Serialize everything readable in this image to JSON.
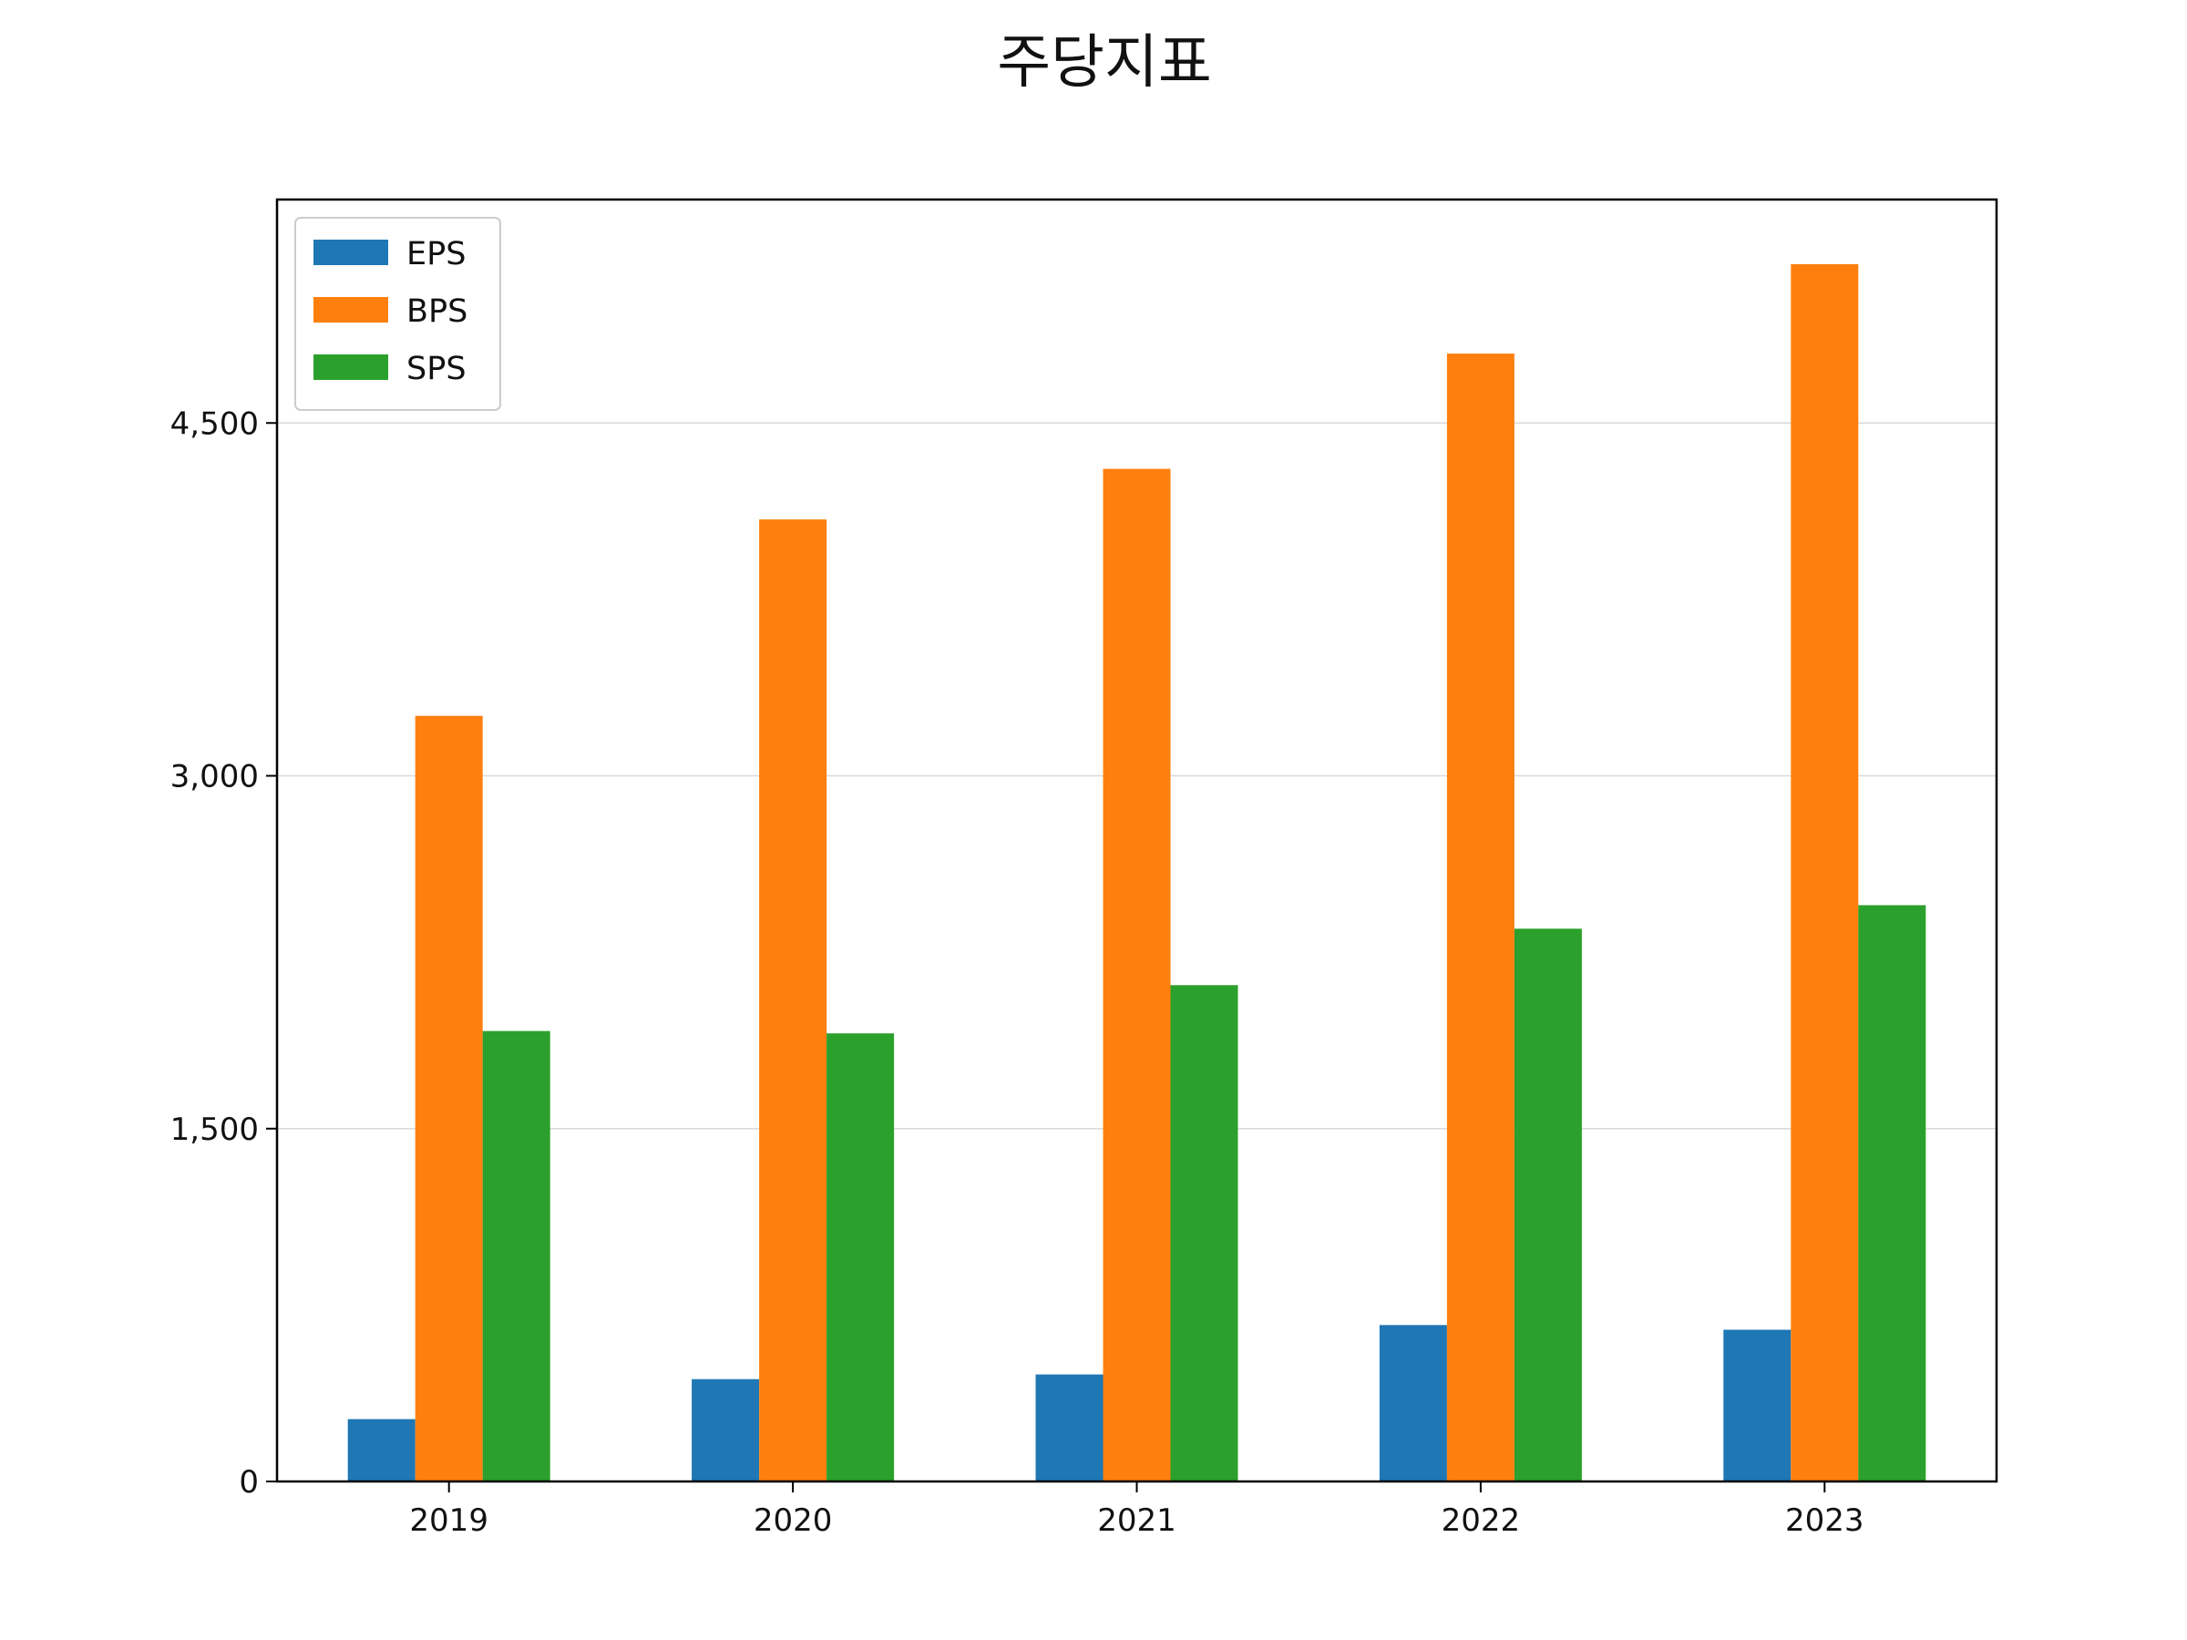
{
  "chart_data": {
    "type": "bar",
    "title": "주당지표",
    "xlabel": "",
    "ylabel": "",
    "categories": [
      "2019",
      "2020",
      "2021",
      "2022",
      "2023"
    ],
    "series": [
      {
        "name": "EPS",
        "color": "#1f77b4",
        "values": [
          265,
          435,
          455,
          665,
          645
        ]
      },
      {
        "name": "BPS",
        "color": "#ff7f0e",
        "values": [
          3255,
          4090,
          4305,
          4795,
          5175
        ]
      },
      {
        "name": "SPS",
        "color": "#2ca02c",
        "values": [
          1915,
          1905,
          2110,
          2350,
          2450
        ]
      }
    ],
    "ylim": [
      0,
      5450
    ],
    "yticks": [
      0,
      1500,
      3000,
      4500
    ],
    "ytick_labels": [
      "0",
      "1,500",
      "3,000",
      "4,500"
    ],
    "grid": "y",
    "legend": "top-left"
  }
}
